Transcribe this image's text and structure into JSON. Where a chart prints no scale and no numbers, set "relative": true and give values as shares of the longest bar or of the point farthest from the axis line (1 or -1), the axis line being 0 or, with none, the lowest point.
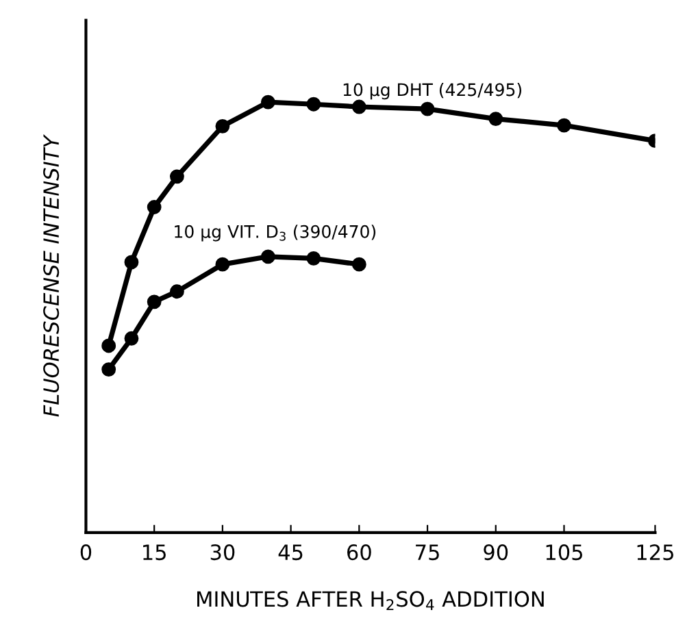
{
  "chart_data": {
    "type": "line",
    "relative": true,
    "xlabel": "MINUTES AFTER H$_{2}$SO$_{4}$ ADDITION",
    "ylabel": "FLUORESCENSE INTENSITY",
    "xlim": [
      0,
      125
    ],
    "xticks": [
      0,
      15,
      30,
      45,
      60,
      75,
      90,
      105,
      125
    ],
    "marker": "circle",
    "line_style": "solid",
    "grid": false,
    "legend": false,
    "series": [
      {
        "name": "10 μg DHT (425/495)",
        "color": "#000000",
        "x": [
          5,
          10,
          15,
          20,
          30,
          40,
          50,
          60,
          75,
          90,
          105,
          125
        ],
        "values": [
          0.434,
          0.628,
          0.756,
          0.827,
          0.944,
          1,
          0.995,
          0.989,
          0.984,
          0.961,
          0.946,
          0.91
        ]
      },
      {
        "name": "10 μg VIT. D$_{3}$ (390/470)",
        "color": "#000000",
        "x": [
          5,
          10,
          15,
          20,
          30,
          40,
          50,
          60
        ],
        "values": [
          0.379,
          0.451,
          0.536,
          0.56,
          0.623,
          0.641,
          0.637,
          0.623
        ]
      }
    ]
  }
}
